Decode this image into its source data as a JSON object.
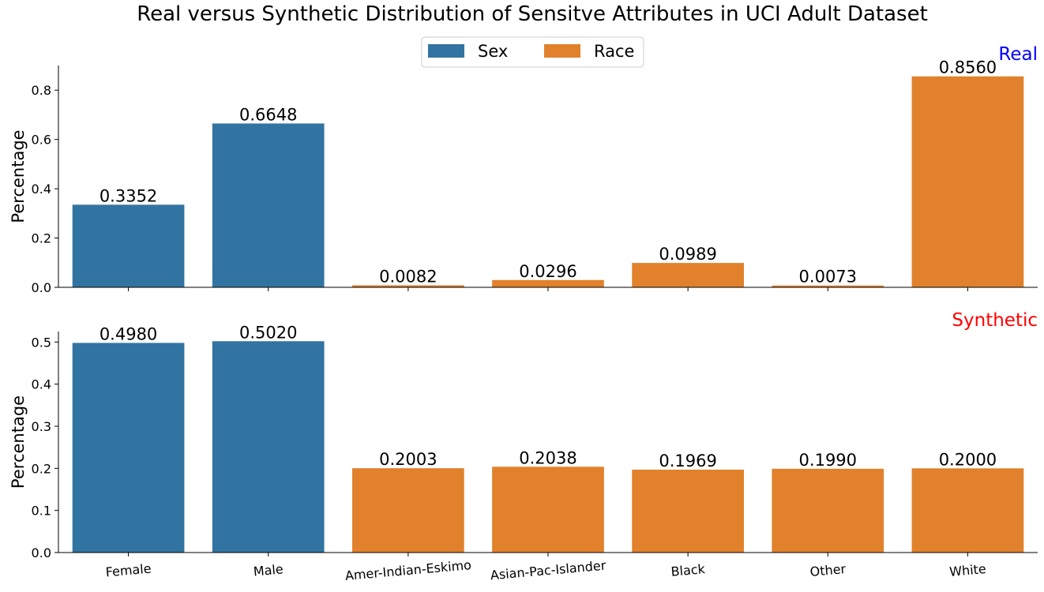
{
  "title": "Real versus Synthetic Distribution of Sensitve Attributes in UCI Adult Dataset",
  "legend": {
    "placement": "top-center",
    "entries": [
      {
        "label": "Sex",
        "color": "#3274a1"
      },
      {
        "label": "Race",
        "color": "#e1812c"
      }
    ]
  },
  "chart_data": [
    {
      "type": "bar",
      "panel_label": "Real",
      "panel_label_color": "#0000ff",
      "ylabel": "Percentage",
      "xlabel": "",
      "ylim": [
        0,
        0.9
      ],
      "yticks": [
        "0.0",
        "0.2",
        "0.4",
        "0.6",
        "0.8"
      ],
      "categories": [
        "Female",
        "Male",
        "Amer-Indian-Eskimo",
        "Asian-Pac-Islander",
        "Black",
        "Other",
        "White"
      ],
      "groups": [
        "Sex",
        "Sex",
        "Race",
        "Race",
        "Race",
        "Race",
        "Race"
      ],
      "values": [
        0.3352,
        0.6648,
        0.0082,
        0.0296,
        0.0989,
        0.0073,
        0.856
      ],
      "value_labels": [
        "0.3352",
        "0.6648",
        "0.0082",
        "0.0296",
        "0.0989",
        "0.0073",
        "0.8560"
      ],
      "show_xtick_labels": false,
      "grid": false
    },
    {
      "type": "bar",
      "panel_label": "Synthetic",
      "panel_label_color": "#ff0000",
      "ylabel": "Percentage",
      "xlabel": "",
      "ylim": [
        0,
        0.525
      ],
      "yticks": [
        "0.0",
        "0.1",
        "0.2",
        "0.3",
        "0.4",
        "0.5"
      ],
      "categories": [
        "Female",
        "Male",
        "Amer-Indian-Eskimo",
        "Asian-Pac-Islander",
        "Black",
        "Other",
        "White"
      ],
      "groups": [
        "Sex",
        "Sex",
        "Race",
        "Race",
        "Race",
        "Race",
        "Race"
      ],
      "values": [
        0.498,
        0.502,
        0.2003,
        0.2038,
        0.1969,
        0.199,
        0.2
      ],
      "value_labels": [
        "0.4980",
        "0.5020",
        "0.2003",
        "0.2038",
        "0.1969",
        "0.1990",
        "0.2000"
      ],
      "show_xtick_labels": true,
      "grid": false
    }
  ]
}
